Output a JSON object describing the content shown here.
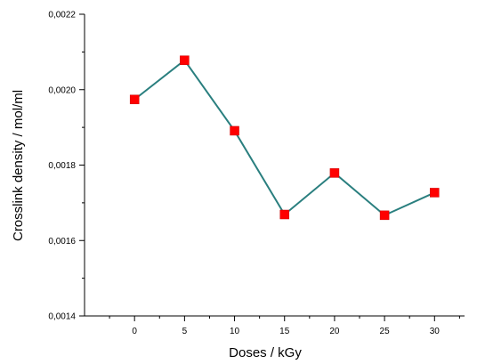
{
  "chart_data": {
    "type": "line",
    "title": "",
    "xlabel": "Doses / kGy",
    "ylabel": "Crosslink density / mol/ml",
    "x": [
      0,
      5,
      10,
      15,
      20,
      25,
      30
    ],
    "series": [
      {
        "values": [
          0.001974,
          0.002078,
          0.001891,
          0.001669,
          0.001779,
          0.001667,
          0.001727
        ],
        "line_color": "#2a7f7f",
        "marker_color": "#ff0000",
        "marker": "square"
      }
    ],
    "xlim": [
      -5,
      33
    ],
    "ylim": [
      0.0014,
      0.0022
    ],
    "x_ticks": [
      0,
      5,
      10,
      15,
      20,
      25,
      30
    ],
    "x_tick_labels": [
      "0",
      "5",
      "10",
      "15",
      "20",
      "25",
      "30"
    ],
    "y_ticks": [
      0.0014,
      0.0016,
      0.0018,
      0.002,
      0.0022
    ],
    "y_tick_labels": [
      "0,0014",
      "0,0016",
      "0,0018",
      "0,0020",
      "0,0022"
    ],
    "grid": false,
    "legend": false
  }
}
